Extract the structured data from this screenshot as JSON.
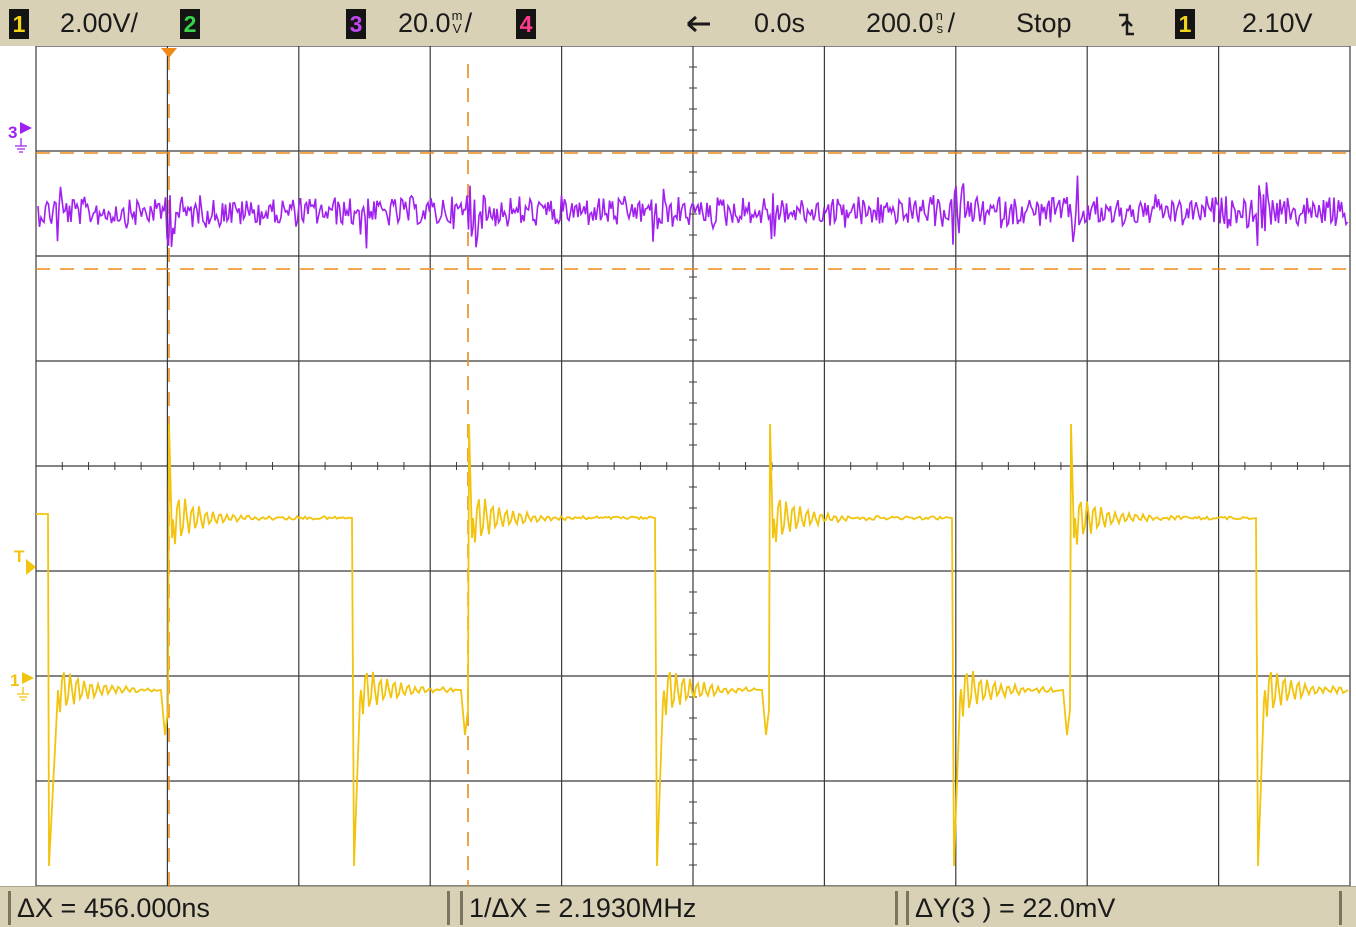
{
  "top_bar": {
    "ch1_num": "1",
    "ch1_scale": "2.00V/",
    "ch2_num": "2",
    "ch3_num": "3",
    "ch3_scale": "20.0",
    "ch3_unit_sup": "m",
    "ch3_unit_sub": "V",
    "ch3_slash": "/",
    "ch4_num": "4",
    "delay_value": "0.0s",
    "timebase_value": "200.0",
    "timebase_unit_sup": "n",
    "timebase_unit_sub": "s",
    "timebase_slash": "/",
    "run_state": "Stop",
    "trigger_source_num": "1",
    "trigger_level": "2.10V",
    "icons": {
      "delay": "left-arrow-icon",
      "trigger_slope": "falling-edge-icon"
    }
  },
  "screen": {
    "markers": {
      "ch3_ground": "3",
      "trigger": "T",
      "ch1_ground": "1"
    },
    "colors": {
      "ch1": "#f2c40e",
      "ch3": "#a020f0",
      "cursor": "#ef8a1a",
      "grid": "#3b3b3b",
      "background": "#ffffff"
    }
  },
  "measurements": {
    "delta_x": "ΔX = 456.000ns",
    "inverse_delta_x": "1/ΔX = 2.1930MHz",
    "delta_y": "ΔY(3 ) = 22.0mV"
  }
}
